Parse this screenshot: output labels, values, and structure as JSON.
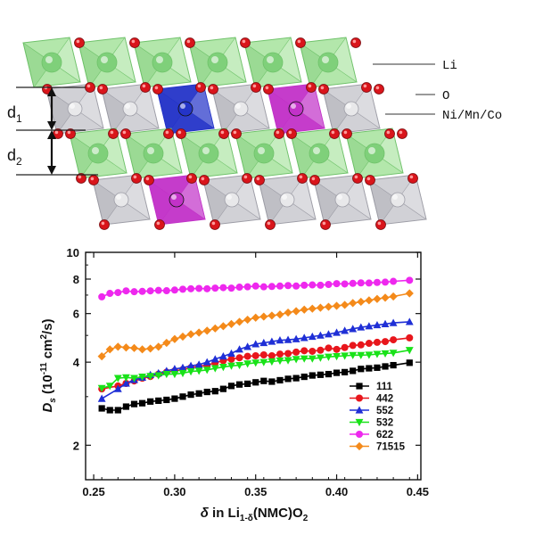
{
  "structure": {
    "labels": {
      "li": "Li",
      "o": "O",
      "tm": "Ni/Mn/Co",
      "d1": "d",
      "d1_sub": "1",
      "d2": "d",
      "d2_sub": "2"
    },
    "colors": {
      "li_octa": "#a6e39c",
      "li_octa_dark": "#6fc26a",
      "li_atom": "#7fd07a",
      "tm_octa": "#c9c9cf",
      "tm_octa_dark": "#9d9da6",
      "tm_atom": "#e8e8ea",
      "o_atom": "#d9151b",
      "highlight_blue": "#2434c8",
      "highlight_magenta": "#c232c8"
    }
  },
  "chart_data": {
    "type": "line",
    "xlabel_prefix": "δ",
    "xlabel_mid": " in Li",
    "xlabel_sub": "1-δ",
    "xlabel_suffix": "(NMC)O",
    "xlabel_sub2": "2",
    "ylabel_main": "D",
    "ylabel_sub": "s",
    "ylabel_units_open": " (10",
    "ylabel_units_exp": "-11",
    "ylabel_units_mid": " cm",
    "ylabel_units_exp2": "2",
    "ylabel_units_close": "/s)",
    "xlim": [
      0.245,
      0.452
    ],
    "ylim": [
      1.5,
      10
    ],
    "yscale": "log",
    "xticks": [
      "0.25",
      "0.30",
      "0.35",
      "0.40",
      "0.45"
    ],
    "yticks": [
      "2",
      "4",
      "6",
      "8",
      "10"
    ],
    "legend_position": "bottom-right",
    "series": [
      {
        "name": "111",
        "color": "#000000",
        "marker": "square",
        "x": [
          0.255,
          0.26,
          0.265,
          0.27,
          0.275,
          0.28,
          0.285,
          0.29,
          0.295,
          0.3,
          0.305,
          0.31,
          0.315,
          0.32,
          0.325,
          0.33,
          0.335,
          0.34,
          0.345,
          0.35,
          0.355,
          0.36,
          0.365,
          0.37,
          0.375,
          0.38,
          0.385,
          0.39,
          0.395,
          0.4,
          0.405,
          0.41,
          0.415,
          0.42,
          0.425,
          0.43,
          0.435,
          0.445
        ],
        "y": [
          2.72,
          2.68,
          2.68,
          2.76,
          2.82,
          2.84,
          2.88,
          2.9,
          2.92,
          2.95,
          3.0,
          3.05,
          3.08,
          3.12,
          3.14,
          3.2,
          3.28,
          3.32,
          3.34,
          3.38,
          3.42,
          3.4,
          3.44,
          3.48,
          3.5,
          3.54,
          3.58,
          3.6,
          3.62,
          3.66,
          3.68,
          3.72,
          3.78,
          3.8,
          3.82,
          3.86,
          3.9,
          3.98
        ]
      },
      {
        "name": "442",
        "color": "#e8161c",
        "marker": "circle",
        "x": [
          0.255,
          0.265,
          0.27,
          0.275,
          0.28,
          0.285,
          0.29,
          0.295,
          0.3,
          0.305,
          0.31,
          0.315,
          0.32,
          0.325,
          0.33,
          0.335,
          0.34,
          0.345,
          0.35,
          0.355,
          0.36,
          0.365,
          0.37,
          0.375,
          0.38,
          0.385,
          0.39,
          0.395,
          0.4,
          0.405,
          0.41,
          0.415,
          0.42,
          0.425,
          0.43,
          0.435,
          0.445
        ],
        "y": [
          3.2,
          3.28,
          3.35,
          3.42,
          3.5,
          3.55,
          3.62,
          3.68,
          3.72,
          3.76,
          3.82,
          3.86,
          3.9,
          3.98,
          4.05,
          4.1,
          4.15,
          4.2,
          4.22,
          4.25,
          4.22,
          4.28,
          4.3,
          4.35,
          4.4,
          4.38,
          4.42,
          4.5,
          4.45,
          4.52,
          4.6,
          4.62,
          4.68,
          4.72,
          4.75,
          4.82,
          4.9
        ]
      },
      {
        "name": "552",
        "color": "#1f2fd6",
        "marker": "triangle-up",
        "x": [
          0.255,
          0.265,
          0.27,
          0.275,
          0.28,
          0.285,
          0.29,
          0.295,
          0.3,
          0.305,
          0.31,
          0.315,
          0.32,
          0.325,
          0.33,
          0.335,
          0.34,
          0.345,
          0.35,
          0.355,
          0.36,
          0.365,
          0.37,
          0.375,
          0.38,
          0.385,
          0.39,
          0.395,
          0.4,
          0.405,
          0.41,
          0.415,
          0.42,
          0.425,
          0.43,
          0.435,
          0.445
        ],
        "y": [
          2.95,
          3.2,
          3.35,
          3.45,
          3.52,
          3.6,
          3.65,
          3.72,
          3.78,
          3.82,
          3.88,
          3.92,
          4.0,
          4.1,
          4.2,
          4.3,
          4.45,
          4.55,
          4.65,
          4.7,
          4.75,
          4.8,
          4.82,
          4.85,
          4.9,
          4.95,
          5.0,
          5.05,
          5.12,
          5.2,
          5.28,
          5.35,
          5.4,
          5.45,
          5.5,
          5.55,
          5.6
        ]
      },
      {
        "name": "532",
        "color": "#19e219",
        "marker": "triangle-down",
        "x": [
          0.255,
          0.26,
          0.265,
          0.27,
          0.275,
          0.28,
          0.285,
          0.29,
          0.295,
          0.3,
          0.305,
          0.31,
          0.315,
          0.32,
          0.325,
          0.33,
          0.335,
          0.34,
          0.345,
          0.35,
          0.355,
          0.36,
          0.365,
          0.37,
          0.375,
          0.38,
          0.385,
          0.39,
          0.395,
          0.4,
          0.405,
          0.41,
          0.415,
          0.42,
          0.425,
          0.43,
          0.435,
          0.445
        ],
        "y": [
          3.22,
          3.28,
          3.5,
          3.52,
          3.5,
          3.54,
          3.56,
          3.58,
          3.62,
          3.62,
          3.65,
          3.7,
          3.72,
          3.75,
          3.8,
          3.84,
          3.88,
          3.9,
          3.95,
          3.98,
          4.0,
          4.02,
          4.05,
          4.06,
          4.1,
          4.12,
          4.12,
          4.15,
          4.18,
          4.2,
          4.22,
          4.24,
          4.24,
          4.25,
          4.28,
          4.3,
          4.32,
          4.42
        ]
      },
      {
        "name": "622",
        "color": "#ee28ee",
        "marker": "circle",
        "x": [
          0.255,
          0.26,
          0.265,
          0.27,
          0.275,
          0.28,
          0.285,
          0.29,
          0.295,
          0.3,
          0.305,
          0.31,
          0.315,
          0.32,
          0.325,
          0.33,
          0.335,
          0.34,
          0.345,
          0.35,
          0.355,
          0.36,
          0.365,
          0.37,
          0.375,
          0.38,
          0.385,
          0.39,
          0.395,
          0.4,
          0.405,
          0.41,
          0.415,
          0.42,
          0.425,
          0.43,
          0.435,
          0.445
        ],
        "y": [
          6.9,
          7.1,
          7.15,
          7.25,
          7.2,
          7.22,
          7.25,
          7.28,
          7.26,
          7.3,
          7.35,
          7.38,
          7.4,
          7.38,
          7.42,
          7.45,
          7.42,
          7.48,
          7.5,
          7.55,
          7.5,
          7.52,
          7.55,
          7.58,
          7.55,
          7.6,
          7.62,
          7.6,
          7.65,
          7.7,
          7.68,
          7.72,
          7.75,
          7.74,
          7.78,
          7.8,
          7.85,
          7.92
        ]
      },
      {
        "name": "71515",
        "color": "#f48a1a",
        "marker": "diamond",
        "x": [
          0.255,
          0.26,
          0.265,
          0.27,
          0.275,
          0.28,
          0.285,
          0.29,
          0.295,
          0.3,
          0.305,
          0.31,
          0.315,
          0.32,
          0.325,
          0.33,
          0.335,
          0.34,
          0.345,
          0.35,
          0.355,
          0.36,
          0.365,
          0.37,
          0.375,
          0.38,
          0.385,
          0.39,
          0.395,
          0.4,
          0.405,
          0.41,
          0.415,
          0.42,
          0.425,
          0.43,
          0.435,
          0.445
        ],
        "y": [
          4.2,
          4.45,
          4.55,
          4.52,
          4.5,
          4.45,
          4.48,
          4.55,
          4.7,
          4.85,
          4.95,
          5.05,
          5.12,
          5.2,
          5.3,
          5.4,
          5.5,
          5.6,
          5.7,
          5.8,
          5.85,
          5.9,
          5.95,
          6.05,
          6.12,
          6.2,
          6.25,
          6.3,
          6.35,
          6.4,
          6.45,
          6.55,
          6.62,
          6.7,
          6.78,
          6.85,
          6.92,
          7.1
        ]
      }
    ]
  }
}
